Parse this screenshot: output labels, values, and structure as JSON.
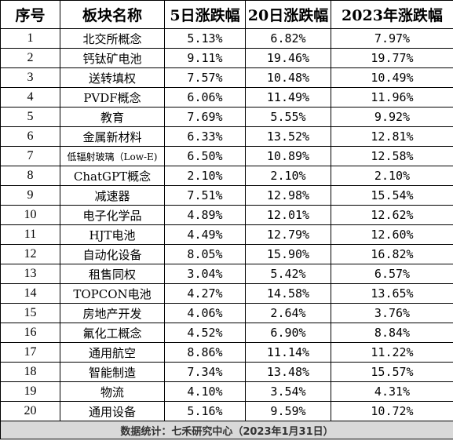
{
  "table": {
    "headers": [
      "序号",
      "板块名称",
      "5日涨跌幅",
      "20日涨跌幅",
      "2023年涨跌幅"
    ],
    "rows": [
      [
        "1",
        "北交所概念",
        "5.13%",
        "6.82%",
        "7.97%"
      ],
      [
        "2",
        "钙钛矿电池",
        "9.11%",
        "19.46%",
        "19.77%"
      ],
      [
        "3",
        "送转填权",
        "7.57%",
        "10.48%",
        "10.49%"
      ],
      [
        "4",
        "PVDF概念",
        "6.06%",
        "11.49%",
        "11.96%"
      ],
      [
        "5",
        "教育",
        "7.69%",
        "5.55%",
        "9.92%"
      ],
      [
        "6",
        "金属新材料",
        "6.33%",
        "13.52%",
        "12.81%"
      ],
      [
        "7",
        "低辐射玻璃（Low-E)",
        "6.50%",
        "10.89%",
        "12.58%"
      ],
      [
        "8",
        "ChatGPT概念",
        "2.10%",
        "2.10%",
        "2.10%"
      ],
      [
        "9",
        "减速器",
        "7.51%",
        "12.98%",
        "15.54%"
      ],
      [
        "10",
        "电子化学品",
        "4.89%",
        "12.01%",
        "12.62%"
      ],
      [
        "11",
        "HJT电池",
        "4.49%",
        "12.79%",
        "12.60%"
      ],
      [
        "12",
        "自动化设备",
        "8.05%",
        "15.90%",
        "16.82%"
      ],
      [
        "13",
        "租售同权",
        "3.04%",
        "5.42%",
        "6.57%"
      ],
      [
        "14",
        "TOPCON电池",
        "4.27%",
        "14.58%",
        "13.65%"
      ],
      [
        "15",
        "房地产开发",
        "4.06%",
        "2.64%",
        "3.76%"
      ],
      [
        "16",
        "氟化工概念",
        "4.52%",
        "6.90%",
        "8.84%"
      ],
      [
        "17",
        "通用航空",
        "8.86%",
        "11.14%",
        "11.22%"
      ],
      [
        "18",
        "智能制造",
        "7.34%",
        "13.48%",
        "15.57%"
      ],
      [
        "19",
        "物流",
        "4.10%",
        "3.54%",
        "4.31%"
      ],
      [
        "20",
        "通用设备",
        "5.16%",
        "9.59%",
        "10.72%"
      ]
    ],
    "footer": "数据统计：七禾研究中心（2023年1月31日）"
  }
}
